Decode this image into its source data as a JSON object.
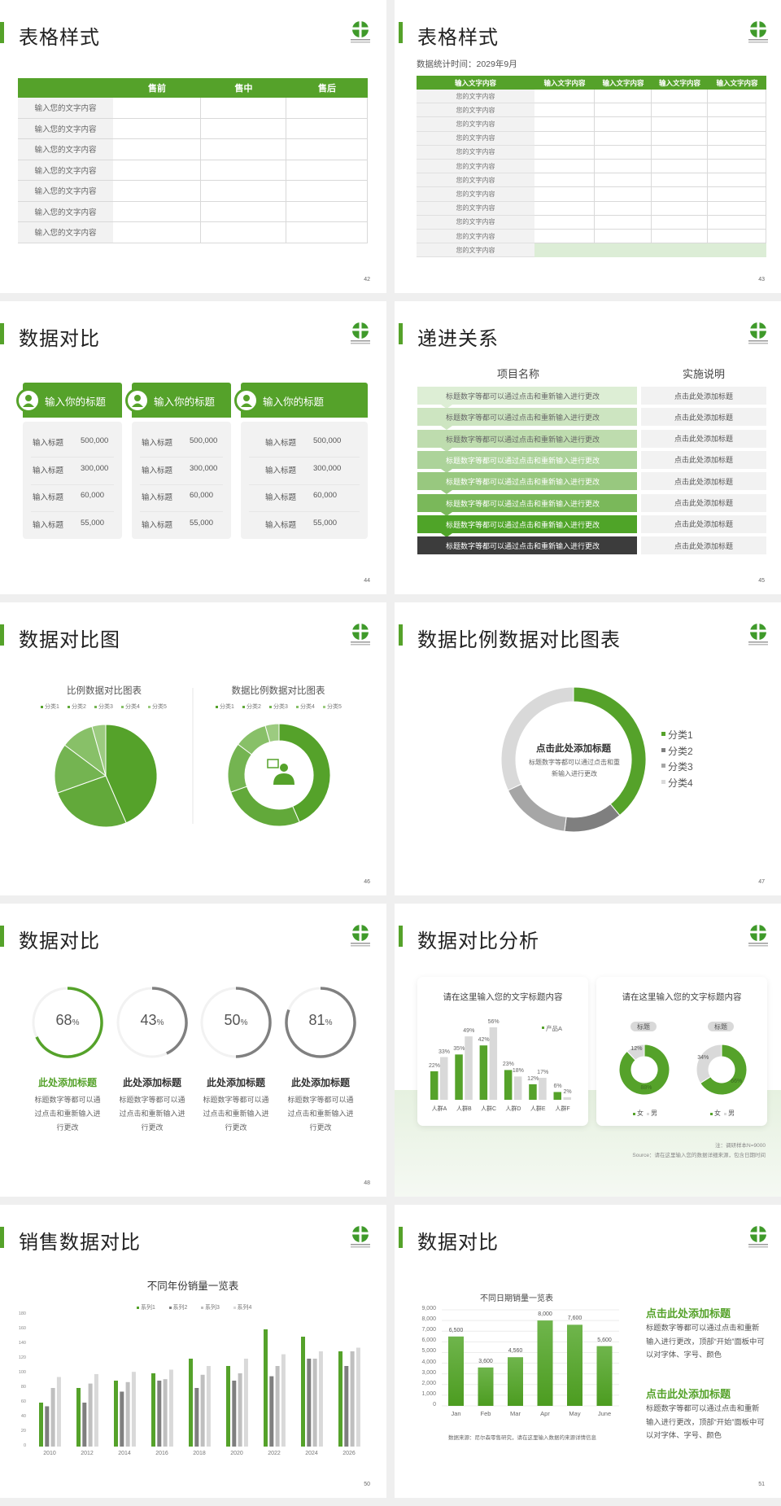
{
  "colors": {
    "green": "#55a22a",
    "dark": "#3c3c3c",
    "grey": "#7f7f7f",
    "midgrey": "#a6a6a6",
    "lightgrey": "#d9d9d9",
    "panel": "#f2f2f2"
  },
  "logo_icon": "green-circle-cross-logo",
  "slides": {
    "s42": {
      "title": "表格样式",
      "page": "42",
      "headers": [
        "",
        "售前",
        "售中",
        "售后"
      ],
      "rows": [
        "输入您的文字内容",
        "输入您的文字内容",
        "输入您的文字内容",
        "输入您的文字内容",
        "输入您的文字内容",
        "输入您的文字内容",
        "输入您的文字内容"
      ]
    },
    "s43": {
      "title": "表格样式",
      "page": "43",
      "subtitle": "数据统计时间：2029年9月",
      "headers": [
        "输入文字内容",
        "输入文字内容",
        "输入文字内容",
        "输入文字内容",
        "输入文字内容"
      ],
      "rows": [
        "您的文字内容",
        "您的文字内容",
        "您的文字内容",
        "您的文字内容",
        "您的文字内容",
        "您的文字内容",
        "您的文字内容",
        "您的文字内容",
        "您的文字内容",
        "您的文字内容",
        "您的文字内容",
        "您的文字内容"
      ]
    },
    "s44": {
      "title": "数据对比",
      "page": "44",
      "cards": [
        {
          "title": "输入你的标题",
          "icon": "phone-user-icon",
          "rows": [
            {
              "label": "输入标题",
              "value": "500,000"
            },
            {
              "label": "输入标题",
              "value": "300,000"
            },
            {
              "label": "输入标题",
              "value": "60,000"
            },
            {
              "label": "输入标题",
              "value": "55,000"
            }
          ]
        },
        {
          "title": "输入你的标题",
          "icon": "user-settings-icon",
          "rows": [
            {
              "label": "输入标题",
              "value": "500,000"
            },
            {
              "label": "输入标题",
              "value": "300,000"
            },
            {
              "label": "输入标题",
              "value": "60,000"
            },
            {
              "label": "输入标题",
              "value": "55,000"
            }
          ]
        },
        {
          "title": "输入你的标题",
          "icon": "user-group-icon",
          "rows": [
            {
              "label": "输入标题",
              "value": "500,000"
            },
            {
              "label": "输入标题",
              "value": "300,000"
            },
            {
              "label": "输入标题",
              "value": "60,000"
            },
            {
              "label": "输入标题",
              "value": "55,000"
            }
          ]
        }
      ]
    },
    "s45": {
      "title": "递进关系",
      "page": "45",
      "col1": "项目名称",
      "col2": "实施说明",
      "row_colors": [
        "#ddeed5",
        "#cde5c1",
        "#bedcae",
        "#acd39a",
        "#98c87f",
        "#7ab85a",
        "#4fa428",
        "#3c3c3c"
      ],
      "rows": [
        {
          "text": "标题数字等都可以通过点击和重新输入进行更改",
          "note": "点击此处添加标题"
        },
        {
          "text": "标题数字等都可以通过点击和重新输入进行更改",
          "note": "点击此处添加标题"
        },
        {
          "text": "标题数字等都可以通过点击和重新输入进行更改",
          "note": "点击此处添加标题"
        },
        {
          "text": "标题数字等都可以通过点击和重新输入进行更改",
          "note": "点击此处添加标题"
        },
        {
          "text": "标题数字等都可以通过点击和重新输入进行更改",
          "note": "点击此处添加标题"
        },
        {
          "text": "标题数字等都可以通过点击和重新输入进行更改",
          "note": "点击此处添加标题"
        },
        {
          "text": "标题数字等都可以通过点击和重新输入进行更改",
          "note": "点击此处添加标题"
        },
        {
          "text": "标题数字等都可以通过点击和重新输入进行更改",
          "note": "点击此处添加标题"
        }
      ]
    },
    "s46": {
      "title": "数据对比图",
      "page": "46",
      "center_icon": "customer-service-icon"
    },
    "s47": {
      "title": "数据比例数据对比图表",
      "page": "47",
      "center_title": "点击此处添加标题",
      "center_text": "标题数字等都可以通过点击和重新输入进行更改"
    },
    "s48": {
      "title": "数据对比",
      "page": "48"
    },
    "s49": {
      "title": "数据对比分析",
      "page": "49",
      "note": "注：调研样本N=9000",
      "source": "Source：请在这里输入您的数据详细来源，包含日期时间"
    },
    "s50": {
      "title": "销售数据对比",
      "page": "50"
    },
    "s51": {
      "title": "数据对比",
      "page": "51",
      "source": "数据来源：尼尔森零售研究，请在这里输入数据的来源详情信息",
      "blocks": [
        {
          "title": "点击此处添加标题",
          "text": "标题数字等都可以通过点击和重新输入进行更改，顶部“开始”面板中可以对字体、字号、颜色"
        },
        {
          "title": "点击此处添加标题",
          "text": "标题数字等都可以通过点击和重新输入进行更改，顶部“开始”面板中可以对字体、字号、颜色"
        }
      ]
    }
  },
  "chart_data": [
    {
      "id": "s46-pie",
      "type": "pie",
      "title": "比例数据对比图表",
      "categories": [
        "分类1",
        "分类2",
        "分类3",
        "分类4",
        "分类5"
      ],
      "values": [
        50,
        30,
        18,
        12,
        5
      ],
      "colors": [
        "#55a22a",
        "#62a93a",
        "#74b451",
        "#88c068",
        "#9ccb80"
      ],
      "legend": "top"
    },
    {
      "id": "s46-donut",
      "type": "pie",
      "title": "数据比例数据对比图表",
      "categories": [
        "分类1",
        "分类2",
        "分类3",
        "分类4",
        "分类5"
      ],
      "values": [
        50,
        30,
        18,
        12,
        5
      ],
      "colors": [
        "#55a22a",
        "#62a93a",
        "#74b451",
        "#88c068",
        "#9ccb80"
      ],
      "legend": "top",
      "donut": true
    },
    {
      "id": "s47-donut",
      "type": "pie",
      "donut": true,
      "categories": [
        "分类1",
        "分类2",
        "分类3",
        "分类4"
      ],
      "values": [
        39,
        13,
        16,
        32
      ],
      "colors": [
        "#55a22a",
        "#7f7f7f",
        "#a6a6a6",
        "#d9d9d9"
      ],
      "legend": "right"
    },
    {
      "id": "s48-rings",
      "type": "pie",
      "donut": true,
      "items": [
        {
          "value": 68,
          "label": "68",
          "unit": "%",
          "title": "此处添加标题",
          "text": "标题数字等都可以通过点击和重新输入进行更改",
          "color": "#55a22a"
        },
        {
          "value": 43,
          "label": "43",
          "unit": "%",
          "title": "此处添加标题",
          "text": "标题数字等都可以通过点击和重新输入进行更改",
          "color": "#808080"
        },
        {
          "value": 50,
          "label": "50",
          "unit": "%",
          "title": "此处添加标题",
          "text": "标题数字等都可以通过点击和重新输入进行更改",
          "color": "#808080"
        },
        {
          "value": 81,
          "label": "81",
          "unit": "%",
          "title": "此处添加标题",
          "text": "标题数字等都可以通过点击和重新输入进行更改",
          "color": "#808080"
        }
      ]
    },
    {
      "id": "s49-bar",
      "type": "bar",
      "title": "请在这里输入您的文字标题内容",
      "categories": [
        "人群A",
        "人群B",
        "人群C",
        "人群D",
        "人群E",
        "人群F"
      ],
      "series": [
        {
          "name": "产品A",
          "values": [
            22,
            35,
            42,
            23,
            12,
            6
          ],
          "labels": [
            "22%",
            "35%",
            "42%",
            "23%",
            "12%",
            "6%"
          ],
          "color": "#55a22a"
        },
        {
          "values": [
            33,
            49,
            56,
            18,
            17,
            2
          ],
          "labels": [
            "33%",
            "49%",
            "56%",
            "18%",
            "17%",
            "2%"
          ],
          "color": "#d9d9d9"
        }
      ],
      "legend": "top-right"
    },
    {
      "id": "s49-donuts",
      "type": "pie",
      "donut": true,
      "title": "请在这里输入您的文字标题内容",
      "legend": "bottom",
      "categories": [
        "女",
        "男"
      ],
      "colors": [
        "#55a22a",
        "#d9d9d9"
      ],
      "charts": [
        {
          "label": "标题",
          "values": [
            88,
            12
          ],
          "labels": [
            "88%",
            "12%"
          ]
        },
        {
          "label": "标题",
          "values": [
            66,
            34
          ],
          "labels": [
            "66%",
            "34%"
          ]
        }
      ]
    },
    {
      "id": "s50-bar",
      "type": "bar",
      "title": "不同年份销量一览表",
      "categories": [
        "2010",
        "2012",
        "2014",
        "2016",
        "2018",
        "2020",
        "2022",
        "2024",
        "2026"
      ],
      "ylim": [
        0,
        180
      ],
      "yticks": [
        0,
        20,
        40,
        60,
        80,
        100,
        120,
        140,
        160,
        180
      ],
      "legend": "top",
      "series": [
        {
          "name": "系列1",
          "values": [
            60,
            80,
            90,
            100,
            120,
            110,
            160,
            150,
            130
          ],
          "color": "#55a22a"
        },
        {
          "name": "系列2",
          "values": [
            55,
            60,
            75,
            90,
            80,
            90,
            96,
            120,
            110
          ],
          "color": "#7f7f7f"
        },
        {
          "name": "系列3",
          "values": [
            80,
            86,
            88,
            92,
            98,
            100,
            110,
            120,
            130
          ],
          "color": "#bfbfbf"
        },
        {
          "name": "系列4",
          "values": [
            95,
            99,
            102,
            105,
            110,
            120,
            126,
            130,
            135
          ],
          "color": "#d9d9d9"
        }
      ]
    },
    {
      "id": "s51-bar",
      "type": "bar",
      "title": "不同日期销量一览表",
      "categories": [
        "Jan",
        "Feb",
        "Mar",
        "Apr",
        "May",
        "June"
      ],
      "values": [
        6500,
        3600,
        4560,
        8000,
        7600,
        5600
      ],
      "labels": [
        "6,500",
        "3,600",
        "4,560",
        "8,000",
        "7,600",
        "5,600"
      ],
      "ylim": [
        0,
        9000
      ],
      "yticks": [
        "0",
        "1,000",
        "2,000",
        "3,000",
        "4,000",
        "5,000",
        "6,000",
        "7,000",
        "8,000",
        "9,000"
      ],
      "grid": true
    }
  ]
}
